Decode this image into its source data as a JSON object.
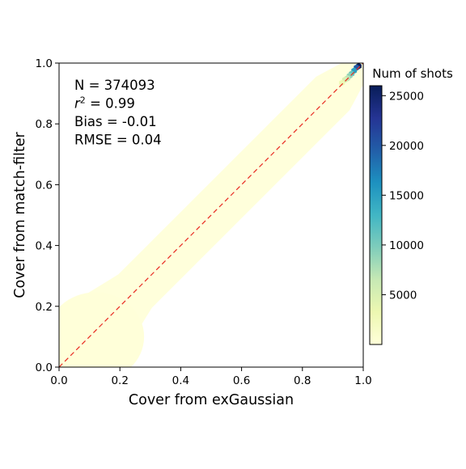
{
  "chart_data": {
    "type": "heatmap",
    "subtype": "hexbin-density",
    "xlabel": "Cover from exGaussian",
    "ylabel": "Cover from match-filter",
    "xlim": [
      0.0,
      1.0
    ],
    "ylim": [
      0.0,
      1.0
    ],
    "xticks": [
      "0.0",
      "0.2",
      "0.4",
      "0.6",
      "0.8",
      "1.0"
    ],
    "yticks": [
      "0.0",
      "0.2",
      "0.4",
      "0.6",
      "0.8",
      "1.0"
    ],
    "grid": false,
    "reference_line": {
      "style": "dashed",
      "color": "#e8281e",
      "from": [
        0,
        0
      ],
      "to": [
        1,
        1
      ]
    },
    "annotations": [
      {
        "parts": [
          {
            "t": "N = 374093"
          }
        ]
      },
      {
        "parts": [
          {
            "t": "r",
            "style": "italic"
          },
          {
            "t": "2",
            "style": "sup"
          },
          {
            "t": " = 0.99"
          }
        ]
      },
      {
        "parts": [
          {
            "t": "Bias = -0.01"
          }
        ]
      },
      {
        "parts": [
          {
            "t": "RMSE = 0.04"
          }
        ]
      }
    ],
    "annotation_placement": "top-left",
    "colorbar": {
      "title": "Num of shots",
      "min": 0,
      "max": 26000,
      "ticks": [
        5000,
        10000,
        15000,
        20000,
        25000
      ],
      "colormap": [
        "#ffffd9",
        "#edf8b1",
        "#c7e9b4",
        "#7fcdbb",
        "#41b6c4",
        "#1d91c0",
        "#225ea8",
        "#253494",
        "#081d58"
      ]
    },
    "density": {
      "description_hint": "points concentrated along 1:1 line; dense cluster near (0.97,0.97)",
      "hotspots": [
        {
          "x": 0.985,
          "y": 0.99,
          "count": 26000
        },
        {
          "x": 0.978,
          "y": 0.985,
          "count": 20000
        },
        {
          "x": 0.97,
          "y": 0.975,
          "count": 15000
        },
        {
          "x": 0.962,
          "y": 0.965,
          "count": 11000
        },
        {
          "x": 0.955,
          "y": 0.958,
          "count": 9000
        },
        {
          "x": 0.948,
          "y": 0.95,
          "count": 7000
        },
        {
          "x": 0.94,
          "y": 0.945,
          "count": 5000
        },
        {
          "x": 0.93,
          "y": 0.935,
          "count": 3000
        }
      ]
    }
  }
}
